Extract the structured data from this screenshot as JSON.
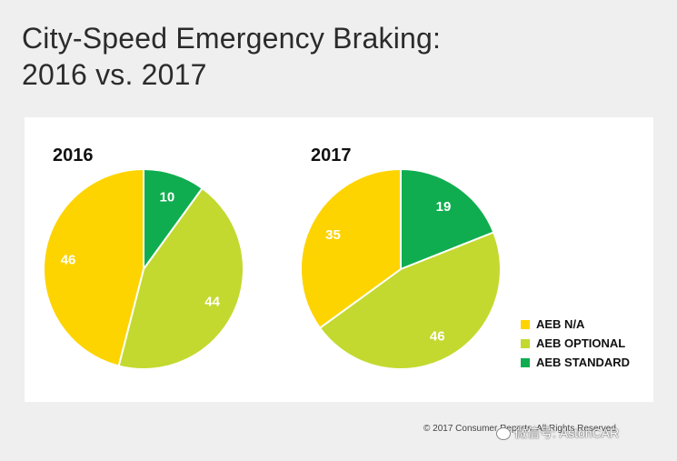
{
  "page": {
    "title_line1": "City-Speed Emergency Braking:",
    "title_line2": "2016 vs. 2017",
    "footer": "© 2017 Consumer Reports. All Rights Reserved.",
    "watermark": "微信号: AstonCAR"
  },
  "colors": {
    "aeb_na": "#fdd400",
    "aeb_optional": "#c3d92f",
    "aeb_standard": "#10ad50"
  },
  "chart_data": [
    {
      "type": "pie",
      "title": "2016",
      "labels": [
        "AEB N/A",
        "AEB OPTIONAL",
        "AEB STANDARD"
      ],
      "values": [
        46,
        44,
        10
      ],
      "start": "top, clockwise from AEB STANDARD"
    },
    {
      "type": "pie",
      "title": "2017",
      "labels": [
        "AEB N/A",
        "AEB OPTIONAL",
        "AEB STANDARD"
      ],
      "values": [
        35,
        46,
        19
      ],
      "start": "top, clockwise from AEB STANDARD"
    }
  ],
  "legend": {
    "placement": "bottom-right",
    "items": [
      {
        "label": "AEB N/A",
        "key": "aeb_na"
      },
      {
        "label": "AEB OPTIONAL",
        "key": "aeb_optional"
      },
      {
        "label": "AEB STANDARD",
        "key": "aeb_standard"
      }
    ]
  }
}
